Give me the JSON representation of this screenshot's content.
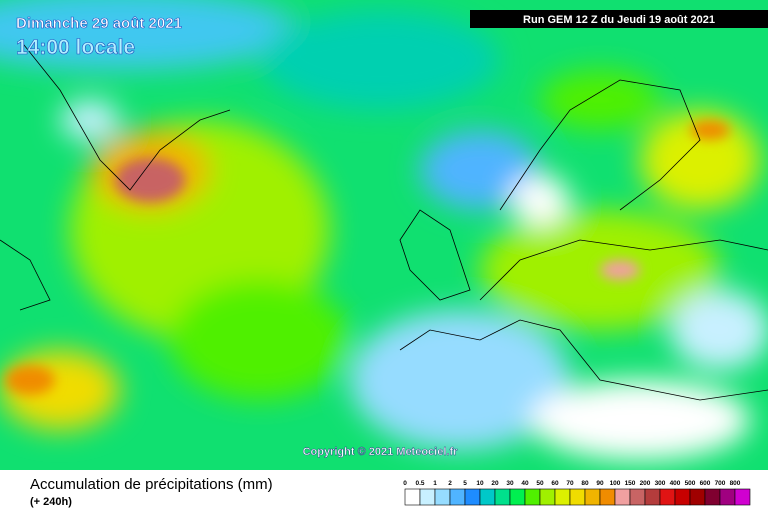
{
  "header": {
    "date": "Dimanche 29 août 2021",
    "time": "14:00 locale",
    "run": "Run GEM 12 Z du Jeudi 19 août 2021"
  },
  "copyright": "Copyright © 2021 Meteociel.fr",
  "footer": {
    "title": "Accumulation de précipitations (mm)",
    "subtitle": "(+ 240h)"
  },
  "legend": {
    "steps": [
      {
        "label": "0",
        "color": "#ffffff"
      },
      {
        "label": "0.5",
        "color": "#c8f0ff"
      },
      {
        "label": "1",
        "color": "#96dcff"
      },
      {
        "label": "2",
        "color": "#50b4ff"
      },
      {
        "label": "5",
        "color": "#1e8cff"
      },
      {
        "label": "10",
        "color": "#00c8c8"
      },
      {
        "label": "20",
        "color": "#00e08c"
      },
      {
        "label": "30",
        "color": "#00f050"
      },
      {
        "label": "40",
        "color": "#50f000"
      },
      {
        "label": "50",
        "color": "#a0f000"
      },
      {
        "label": "60",
        "color": "#dcf000"
      },
      {
        "label": "70",
        "color": "#f0dc00"
      },
      {
        "label": "80",
        "color": "#f0b400"
      },
      {
        "label": "90",
        "color": "#f08c00"
      },
      {
        "label": "100",
        "color": "#f0a0a0"
      },
      {
        "label": "150",
        "color": "#c86464"
      },
      {
        "label": "200",
        "color": "#b43c3c"
      },
      {
        "label": "300",
        "color": "#e01414"
      },
      {
        "label": "400",
        "color": "#c80000"
      },
      {
        "label": "500",
        "color": "#a00000"
      },
      {
        "label": "600",
        "color": "#800030"
      },
      {
        "label": "700",
        "color": "#a00080"
      },
      {
        "label": "800",
        "color": "#d000d0"
      }
    ]
  }
}
